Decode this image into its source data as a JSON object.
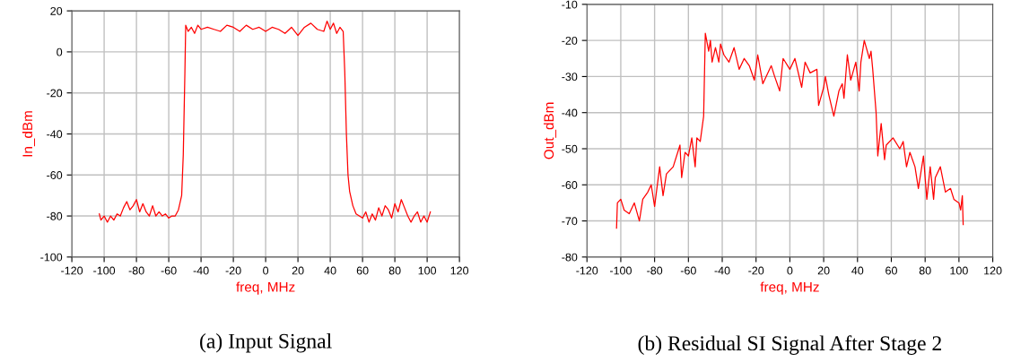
{
  "chart_data": [
    {
      "type": "line",
      "title": "(a) Input Signal",
      "xlabel": "freq, MHz",
      "ylabel": "In_dBm",
      "xlim": [
        -120,
        120
      ],
      "xticks": [
        -120,
        -100,
        -80,
        -60,
        -40,
        -20,
        0,
        20,
        40,
        60,
        80,
        100,
        120
      ],
      "ylim": [
        -100,
        20
      ],
      "yticks": [
        -100,
        -80,
        -60,
        -40,
        -20,
        0,
        20
      ],
      "grid": true,
      "series": [
        {
          "color": "#ff0000",
          "x": [
            -103,
            -102,
            -100,
            -98,
            -96,
            -94,
            -92,
            -90,
            -88,
            -86,
            -84,
            -82,
            -80,
            -78,
            -76,
            -74,
            -72,
            -70,
            -68,
            -66,
            -64,
            -62,
            -60,
            -58,
            -56,
            -54,
            -52,
            -51,
            -50,
            -49.5,
            -48,
            -46,
            -44,
            -42,
            -40,
            -36,
            -32,
            -28,
            -24,
            -20,
            -16,
            -12,
            -8,
            -4,
            0,
            4,
            8,
            12,
            16,
            20,
            24,
            28,
            32,
            36,
            38,
            40,
            42,
            44,
            46,
            48,
            49,
            50,
            51,
            52,
            54,
            56,
            58,
            60,
            62,
            64,
            66,
            68,
            70,
            72,
            74,
            76,
            78,
            80,
            82,
            84,
            86,
            88,
            90,
            92,
            94,
            96,
            98,
            100,
            102
          ],
          "values": [
            -79,
            -82,
            -80,
            -83,
            -80,
            -82,
            -79,
            -80,
            -76,
            -73,
            -77,
            -75,
            -72,
            -78,
            -74,
            -78,
            -80,
            -75,
            -80,
            -78,
            -80,
            -79,
            -81,
            -80,
            -80,
            -77,
            -70,
            -50,
            -10,
            13,
            10,
            12,
            9,
            13,
            11,
            12,
            11,
            10,
            13,
            12,
            10,
            13,
            11,
            12,
            10,
            12,
            11,
            9,
            12,
            8,
            12,
            14,
            11,
            10,
            15,
            11,
            14,
            9,
            12,
            10,
            -10,
            -40,
            -60,
            -68,
            -75,
            -79,
            -80,
            -81,
            -78,
            -83,
            -79,
            -82,
            -76,
            -80,
            -75,
            -77,
            -81,
            -74,
            -78,
            -72,
            -76,
            -80,
            -83,
            -80,
            -78,
            -83,
            -80,
            -83,
            -78
          ]
        }
      ]
    },
    {
      "type": "line",
      "title": "(b) Residual SI Signal After Stage 2",
      "xlabel": "freq, MHz",
      "ylabel": "Out_dBm",
      "xlim": [
        -120,
        120
      ],
      "xticks": [
        -120,
        -100,
        -80,
        -60,
        -40,
        -20,
        0,
        20,
        40,
        60,
        80,
        100,
        120
      ],
      "ylim": [
        -80,
        -10
      ],
      "yticks": [
        -80,
        -70,
        -60,
        -50,
        -40,
        -30,
        -20,
        -10
      ],
      "grid": true,
      "series": [
        {
          "color": "#ff0000",
          "x": [
            -102.5,
            -102,
            -100,
            -98,
            -95,
            -92,
            -89,
            -87,
            -84,
            -82,
            -80,
            -77,
            -75,
            -73,
            -69,
            -65,
            -64,
            -62,
            -60,
            -58,
            -56,
            -55,
            -53,
            -51,
            -50,
            -48,
            -47,
            -46,
            -44,
            -42,
            -41,
            -39,
            -36,
            -33,
            -30,
            -27,
            -24,
            -21,
            -19,
            -16,
            -11,
            -9,
            -6,
            -4,
            0,
            3,
            7,
            9,
            12,
            16,
            17,
            20,
            21,
            23,
            26,
            29,
            31,
            32,
            34,
            36,
            39,
            41,
            42,
            44,
            47,
            48,
            49,
            51,
            52,
            54,
            56,
            57,
            61,
            65,
            67,
            69,
            71,
            74,
            76,
            79,
            81,
            83,
            85,
            86,
            89,
            92,
            95,
            97,
            100,
            101,
            102,
            102.5
          ],
          "values": [
            -72,
            -65,
            -64,
            -67,
            -68,
            -65,
            -70,
            -64,
            -62,
            -60,
            -66,
            -55,
            -63,
            -57,
            -55,
            -49,
            -58,
            -51,
            -52,
            -47,
            -55,
            -47,
            -48,
            -41,
            -18,
            -23,
            -20,
            -26,
            -22,
            -26,
            -21,
            -24,
            -26,
            -22,
            -28,
            -25,
            -27,
            -31,
            -24,
            -32,
            -27,
            -30,
            -34,
            -25,
            -28,
            -25,
            -33,
            -26,
            -29,
            -28,
            -38,
            -33,
            -30,
            -35,
            -41,
            -34,
            -32,
            -36,
            -24,
            -31,
            -26,
            -34,
            -26,
            -20,
            -25,
            -23,
            -28,
            -40,
            -52,
            -43,
            -53,
            -49,
            -47,
            -50,
            -48,
            -55,
            -51,
            -55,
            -61,
            -52,
            -64,
            -55,
            -64,
            -58,
            -55,
            -62,
            -61,
            -64,
            -65,
            -67,
            -63,
            -71
          ]
        }
      ]
    }
  ]
}
